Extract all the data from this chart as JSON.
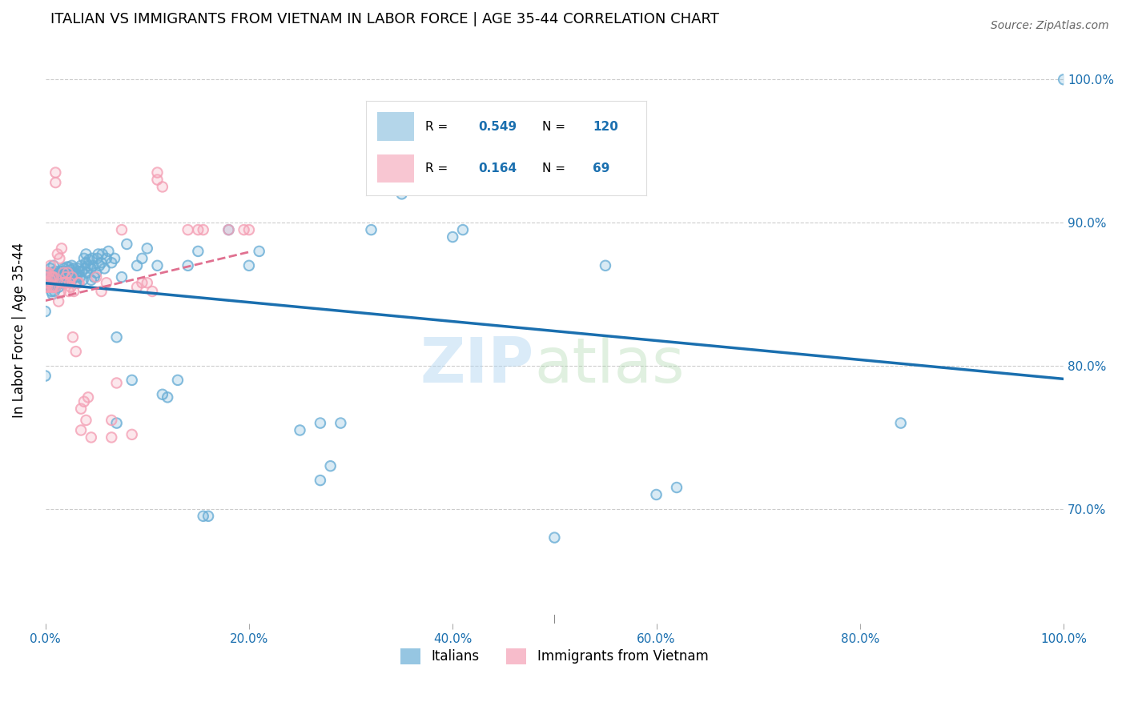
{
  "title": "ITALIAN VS IMMIGRANTS FROM VIETNAM IN LABOR FORCE | AGE 35-44 CORRELATION CHART",
  "source": "Source: ZipAtlas.com",
  "ylabel": "In Labor Force | Age 35-44",
  "xlim": [
    0.0,
    1.0
  ],
  "ylim": [
    0.62,
    1.03
  ],
  "legend_r_blue": "0.549",
  "legend_n_blue": "120",
  "legend_r_pink": "0.164",
  "legend_n_pink": "69",
  "blue_color": "#6aaed6",
  "pink_color": "#f4a0b5",
  "trend_blue_color": "#1a6faf",
  "trend_pink_color": "#e07090",
  "blue_scatter": [
    [
      0.0,
      0.793
    ],
    [
      0.0,
      0.838
    ],
    [
      0.003,
      0.857
    ],
    [
      0.003,
      0.865
    ],
    [
      0.004,
      0.857
    ],
    [
      0.004,
      0.862
    ],
    [
      0.005,
      0.855
    ],
    [
      0.005,
      0.86
    ],
    [
      0.005,
      0.868
    ],
    [
      0.006,
      0.852
    ],
    [
      0.006,
      0.858
    ],
    [
      0.006,
      0.863
    ],
    [
      0.007,
      0.85
    ],
    [
      0.007,
      0.855
    ],
    [
      0.007,
      0.86
    ],
    [
      0.007,
      0.865
    ],
    [
      0.008,
      0.855
    ],
    [
      0.008,
      0.86
    ],
    [
      0.008,
      0.87
    ],
    [
      0.009,
      0.852
    ],
    [
      0.009,
      0.858
    ],
    [
      0.009,
      0.864
    ],
    [
      0.01,
      0.855
    ],
    [
      0.01,
      0.86
    ],
    [
      0.01,
      0.866
    ],
    [
      0.011,
      0.856
    ],
    [
      0.011,
      0.862
    ],
    [
      0.012,
      0.858
    ],
    [
      0.012,
      0.862
    ],
    [
      0.013,
      0.855
    ],
    [
      0.013,
      0.862
    ],
    [
      0.014,
      0.858
    ],
    [
      0.014,
      0.863
    ],
    [
      0.015,
      0.86
    ],
    [
      0.015,
      0.866
    ],
    [
      0.016,
      0.858
    ],
    [
      0.016,
      0.864
    ],
    [
      0.017,
      0.86
    ],
    [
      0.017,
      0.866
    ],
    [
      0.018,
      0.862
    ],
    [
      0.018,
      0.868
    ],
    [
      0.019,
      0.864
    ],
    [
      0.02,
      0.86
    ],
    [
      0.02,
      0.866
    ],
    [
      0.021,
      0.862
    ],
    [
      0.021,
      0.869
    ],
    [
      0.022,
      0.865
    ],
    [
      0.023,
      0.862
    ],
    [
      0.023,
      0.869
    ],
    [
      0.024,
      0.864
    ],
    [
      0.025,
      0.867
    ],
    [
      0.026,
      0.86
    ],
    [
      0.026,
      0.87
    ],
    [
      0.027,
      0.865
    ],
    [
      0.028,
      0.868
    ],
    [
      0.03,
      0.858
    ],
    [
      0.03,
      0.864
    ],
    [
      0.031,
      0.862
    ],
    [
      0.032,
      0.868
    ],
    [
      0.033,
      0.866
    ],
    [
      0.034,
      0.862
    ],
    [
      0.035,
      0.87
    ],
    [
      0.036,
      0.866
    ],
    [
      0.037,
      0.86
    ],
    [
      0.038,
      0.875
    ],
    [
      0.039,
      0.868
    ],
    [
      0.04,
      0.872
    ],
    [
      0.04,
      0.878
    ],
    [
      0.041,
      0.865
    ],
    [
      0.042,
      0.87
    ],
    [
      0.043,
      0.874
    ],
    [
      0.045,
      0.86
    ],
    [
      0.045,
      0.868
    ],
    [
      0.046,
      0.875
    ],
    [
      0.047,
      0.87
    ],
    [
      0.048,
      0.862
    ],
    [
      0.05,
      0.865
    ],
    [
      0.051,
      0.875
    ],
    [
      0.052,
      0.878
    ],
    [
      0.053,
      0.87
    ],
    [
      0.055,
      0.872
    ],
    [
      0.056,
      0.878
    ],
    [
      0.058,
      0.868
    ],
    [
      0.06,
      0.875
    ],
    [
      0.062,
      0.88
    ],
    [
      0.065,
      0.872
    ],
    [
      0.068,
      0.875
    ],
    [
      0.07,
      0.82
    ],
    [
      0.07,
      0.76
    ],
    [
      0.075,
      0.862
    ],
    [
      0.08,
      0.885
    ],
    [
      0.085,
      0.79
    ],
    [
      0.09,
      0.87
    ],
    [
      0.095,
      0.875
    ],
    [
      0.1,
      0.882
    ],
    [
      0.11,
      0.87
    ],
    [
      0.115,
      0.78
    ],
    [
      0.12,
      0.778
    ],
    [
      0.13,
      0.79
    ],
    [
      0.14,
      0.87
    ],
    [
      0.15,
      0.88
    ],
    [
      0.155,
      0.695
    ],
    [
      0.16,
      0.695
    ],
    [
      0.18,
      0.895
    ],
    [
      0.2,
      0.87
    ],
    [
      0.21,
      0.88
    ],
    [
      0.25,
      0.755
    ],
    [
      0.27,
      0.72
    ],
    [
      0.27,
      0.76
    ],
    [
      0.28,
      0.73
    ],
    [
      0.29,
      0.76
    ],
    [
      0.32,
      0.895
    ],
    [
      0.35,
      0.92
    ],
    [
      0.4,
      0.89
    ],
    [
      0.41,
      0.895
    ],
    [
      0.43,
      0.935
    ],
    [
      0.5,
      0.68
    ],
    [
      0.55,
      0.87
    ],
    [
      0.6,
      0.71
    ],
    [
      0.62,
      0.715
    ],
    [
      0.84,
      0.76
    ],
    [
      1.0,
      1.0
    ]
  ],
  "pink_scatter": [
    [
      0.0,
      0.855
    ],
    [
      0.0,
      0.862
    ],
    [
      0.001,
      0.858
    ],
    [
      0.001,
      0.865
    ],
    [
      0.002,
      0.855
    ],
    [
      0.002,
      0.862
    ],
    [
      0.003,
      0.858
    ],
    [
      0.003,
      0.865
    ],
    [
      0.004,
      0.855
    ],
    [
      0.004,
      0.862
    ],
    [
      0.005,
      0.86
    ],
    [
      0.005,
      0.87
    ],
    [
      0.006,
      0.855
    ],
    [
      0.006,
      0.862
    ],
    [
      0.007,
      0.855
    ],
    [
      0.007,
      0.862
    ],
    [
      0.008,
      0.855
    ],
    [
      0.008,
      0.862
    ],
    [
      0.01,
      0.855
    ],
    [
      0.01,
      0.928
    ],
    [
      0.01,
      0.935
    ],
    [
      0.012,
      0.878
    ],
    [
      0.013,
      0.845
    ],
    [
      0.014,
      0.875
    ],
    [
      0.015,
      0.852
    ],
    [
      0.016,
      0.882
    ],
    [
      0.017,
      0.858
    ],
    [
      0.018,
      0.865
    ],
    [
      0.019,
      0.858
    ],
    [
      0.02,
      0.862
    ],
    [
      0.021,
      0.858
    ],
    [
      0.022,
      0.865
    ],
    [
      0.023,
      0.852
    ],
    [
      0.024,
      0.858
    ],
    [
      0.025,
      0.855
    ],
    [
      0.026,
      0.862
    ],
    [
      0.027,
      0.82
    ],
    [
      0.028,
      0.852
    ],
    [
      0.03,
      0.81
    ],
    [
      0.032,
      0.858
    ],
    [
      0.033,
      0.858
    ],
    [
      0.035,
      0.755
    ],
    [
      0.035,
      0.77
    ],
    [
      0.038,
      0.775
    ],
    [
      0.04,
      0.762
    ],
    [
      0.042,
      0.778
    ],
    [
      0.045,
      0.75
    ],
    [
      0.05,
      0.862
    ],
    [
      0.055,
      0.852
    ],
    [
      0.06,
      0.858
    ],
    [
      0.065,
      0.75
    ],
    [
      0.065,
      0.762
    ],
    [
      0.07,
      0.788
    ],
    [
      0.075,
      0.895
    ],
    [
      0.085,
      0.752
    ],
    [
      0.09,
      0.855
    ],
    [
      0.095,
      0.858
    ],
    [
      0.1,
      0.858
    ],
    [
      0.105,
      0.852
    ],
    [
      0.11,
      0.93
    ],
    [
      0.11,
      0.935
    ],
    [
      0.115,
      0.925
    ],
    [
      0.14,
      0.895
    ],
    [
      0.15,
      0.895
    ],
    [
      0.155,
      0.895
    ],
    [
      0.18,
      0.895
    ],
    [
      0.195,
      0.895
    ],
    [
      0.2,
      0.895
    ]
  ]
}
